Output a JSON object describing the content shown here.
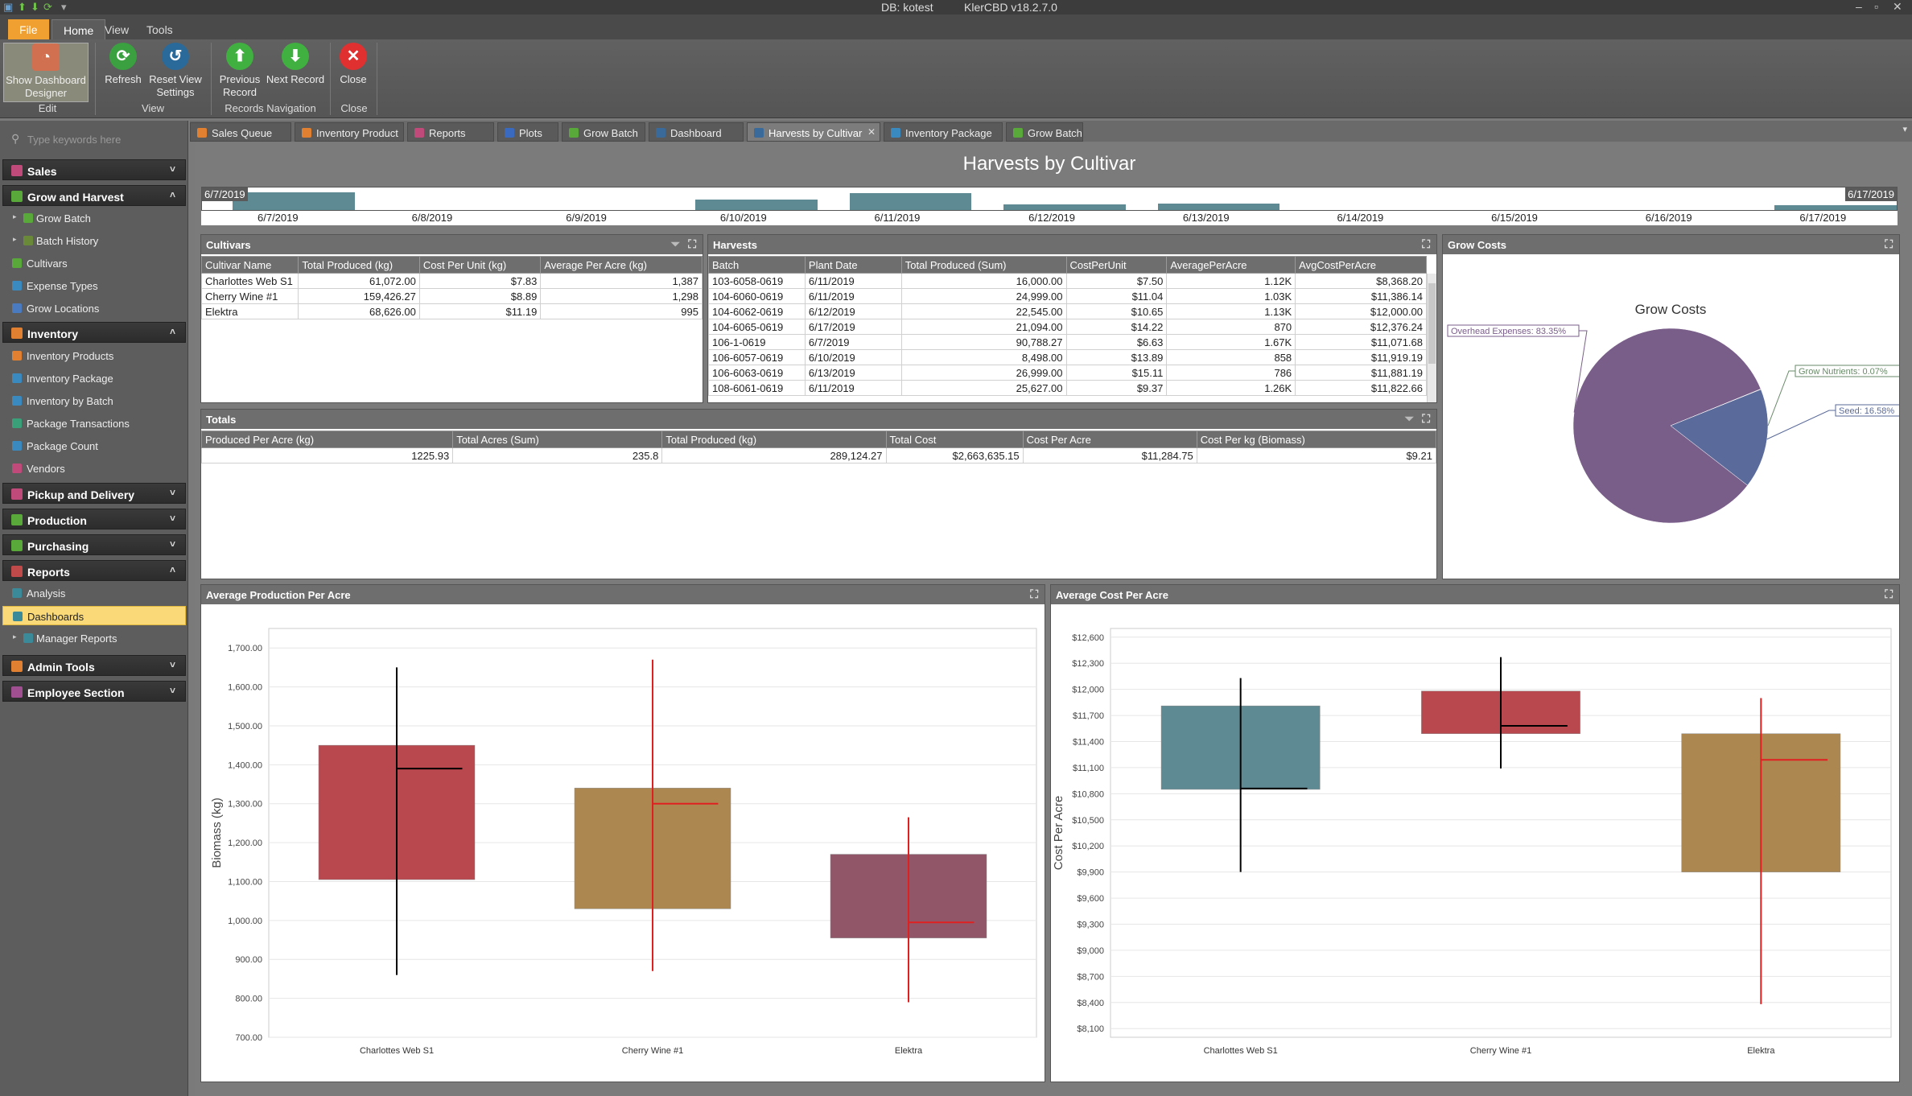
{
  "window": {
    "db": "DB: kotest",
    "app": "KlerCBD v18.2.7.0"
  },
  "ribbon_tabs": [
    "File",
    "Home",
    "View",
    "Tools"
  ],
  "ribbon": {
    "show_designer": "Show Dashboard Designer",
    "refresh": "Refresh",
    "reset_view": "Reset View Settings",
    "previous": "Previous Record",
    "next": "Next Record",
    "close": "Close",
    "groups": {
      "edit": "Edit",
      "view": "View",
      "nav": "Records Navigation",
      "close": "Close"
    }
  },
  "sidebar": {
    "search_placeholder": "Type keywords here",
    "groups": [
      {
        "label": "Sales",
        "color": "#c04a7a"
      },
      {
        "label": "Grow and Harvest",
        "color": "#58a83a"
      },
      {
        "label": "Inventory",
        "color": "#e08030"
      },
      {
        "label": "Pickup and Delivery",
        "color": "#c04a7a"
      },
      {
        "label": "Production",
        "color": "#58a83a"
      },
      {
        "label": "Purchasing",
        "color": "#58a83a"
      },
      {
        "label": "Reports",
        "color": "#c04a4a"
      },
      {
        "label": "Admin Tools",
        "color": "#e08030"
      },
      {
        "label": "Employee Section",
        "color": "#a05090"
      }
    ],
    "grow_items": [
      "Grow Batch",
      "Batch History",
      "Cultivars",
      "Expense Types",
      "Grow Locations"
    ],
    "inventory_items": [
      "Inventory Products",
      "Inventory Package",
      "Inventory by Batch",
      "Package Transactions",
      "Package Count",
      "Vendors"
    ],
    "report_items": [
      "Analysis",
      "Dashboards",
      "Manager Reports"
    ]
  },
  "doc_tabs": [
    "Sales Queue",
    "Inventory Product",
    "Reports",
    "Plots",
    "Grow Batch",
    "Dashboard",
    "Harvests by Cultivar",
    "Inventory Package",
    "Grow Batch"
  ],
  "dashboard": {
    "title": "Harvests by Cultivar",
    "range": {
      "start": "6/7/2019",
      "end": "6/17/2019",
      "dates": [
        "6/7/2019",
        "6/8/2019",
        "6/9/2019",
        "6/10/2019",
        "6/11/2019",
        "6/12/2019",
        "6/13/2019",
        "6/14/2019",
        "6/15/2019",
        "6/16/2019",
        "6/17/2019"
      ],
      "levels": [
        0.8,
        0,
        0,
        0.45,
        0.75,
        0.25,
        0.3,
        0,
        0,
        0,
        0.2
      ]
    },
    "cultivars": {
      "title": "Cultivars",
      "columns": [
        "Cultivar Name",
        "Total Produced (kg)",
        "Cost Per Unit (kg)",
        "Average Per Acre (kg)"
      ],
      "rows": [
        [
          "Charlottes Web S1",
          "61,072.00",
          "$7.83",
          "1,387"
        ],
        [
          "Cherry Wine #1",
          "159,426.27",
          "$8.89",
          "1,298"
        ],
        [
          "Elektra",
          "68,626.00",
          "$11.19",
          "995"
        ]
      ]
    },
    "harvests": {
      "title": "Harvests",
      "columns": [
        "Batch",
        "Plant Date",
        "Total Produced (Sum)",
        "CostPerUnit",
        "AveragePerAcre",
        "AvgCostPerAcre"
      ],
      "rows": [
        [
          "103-6058-0619",
          "6/11/2019",
          "16,000.00",
          "$7.50",
          "1.12K",
          "$8,368.20"
        ],
        [
          "104-6060-0619",
          "6/11/2019",
          "24,999.00",
          "$11.04",
          "1.03K",
          "$11,386.14"
        ],
        [
          "104-6062-0619",
          "6/12/2019",
          "22,545.00",
          "$10.65",
          "1.13K",
          "$12,000.00"
        ],
        [
          "104-6065-0619",
          "6/17/2019",
          "21,094.00",
          "$14.22",
          "870",
          "$12,376.24"
        ],
        [
          "106-1-0619",
          "6/7/2019",
          "90,788.27",
          "$6.63",
          "1.67K",
          "$11,071.68"
        ],
        [
          "106-6057-0619",
          "6/10/2019",
          "8,498.00",
          "$13.89",
          "858",
          "$11,919.19"
        ],
        [
          "106-6063-0619",
          "6/13/2019",
          "26,999.00",
          "$15.11",
          "786",
          "$11,881.19"
        ],
        [
          "108-6061-0619",
          "6/11/2019",
          "25,627.00",
          "$9.37",
          "1.26K",
          "$11,822.66"
        ]
      ]
    },
    "totals": {
      "title": "Totals",
      "columns": [
        "Produced Per Acre (kg)",
        "Total Acres (Sum)",
        "Total Produced (kg)",
        "Total Cost",
        "Cost Per Acre",
        "Cost Per kg (Biomass)"
      ],
      "row": [
        "1225.93",
        "235.8",
        "289,124.27",
        "$2,663,635.15",
        "$11,284.75",
        "$9.21"
      ]
    },
    "grow_costs": {
      "panel": "Grow Costs",
      "title": "Grow Costs",
      "slices": [
        {
          "label": "Overhead Expenses: 83.35%",
          "value": 83.35,
          "color": "#7a5e8a"
        },
        {
          "label": "Grow Nutrients: 0.07%",
          "value": 0.07,
          "color": "#6a8a6a"
        },
        {
          "label": "Seed: 16.58%",
          "value": 16.58,
          "color": "#5a6a9a"
        }
      ]
    },
    "avg_prod": {
      "panel": "Average Production Per Acre",
      "ylabel": "Biomass (kg)",
      "ylim": [
        700,
        1750
      ],
      "ticks": [
        "700.00",
        "800.00",
        "900.00",
        "1,000.00",
        "1,100.00",
        "1,200.00",
        "1,300.00",
        "1,400.00",
        "1,500.00",
        "1,600.00",
        "1,700.00"
      ],
      "categories": [
        "Charlottes Web S1",
        "Cherry Wine #1",
        "Elektra"
      ],
      "boxes": [
        {
          "open": 1105,
          "close": 1450,
          "high": 1650,
          "low": 860,
          "mark": 1390,
          "color": "#b9474e",
          "line": "#000000"
        },
        {
          "open": 1030,
          "close": 1340,
          "high": 1670,
          "low": 870,
          "mark": 1300,
          "color": "#ad8750",
          "line": "#e02020"
        },
        {
          "open": 955,
          "close": 1170,
          "high": 1265,
          "low": 790,
          "mark": 995,
          "color": "#915769",
          "line": "#e02020"
        }
      ]
    },
    "avg_cost": {
      "panel": "Average Cost Per Acre",
      "ylabel": "Cost Per Acre",
      "ylim": [
        8000,
        12700
      ],
      "ticks": [
        "$8,100",
        "$8,400",
        "$8,700",
        "$9,000",
        "$9,300",
        "$9,600",
        "$9,900",
        "$10,200",
        "$10,500",
        "$10,800",
        "$11,100",
        "$11,400",
        "$11,700",
        "$12,000",
        "$12,300",
        "$12,600"
      ],
      "categories": [
        "Charlottes Web S1",
        "Cherry Wine #1",
        "Elektra"
      ],
      "boxes": [
        {
          "open": 10850,
          "close": 11810,
          "high": 12130,
          "low": 9900,
          "mark": 10860,
          "color": "#5e8a94",
          "line": "#000000"
        },
        {
          "open": 11490,
          "close": 11980,
          "high": 12370,
          "low": 11090,
          "mark": 11580,
          "color": "#b9474e",
          "line": "#000000"
        },
        {
          "open": 9900,
          "close": 11490,
          "high": 11900,
          "low": 8380,
          "mark": 11190,
          "color": "#ad8750",
          "line": "#e02020"
        }
      ]
    }
  }
}
